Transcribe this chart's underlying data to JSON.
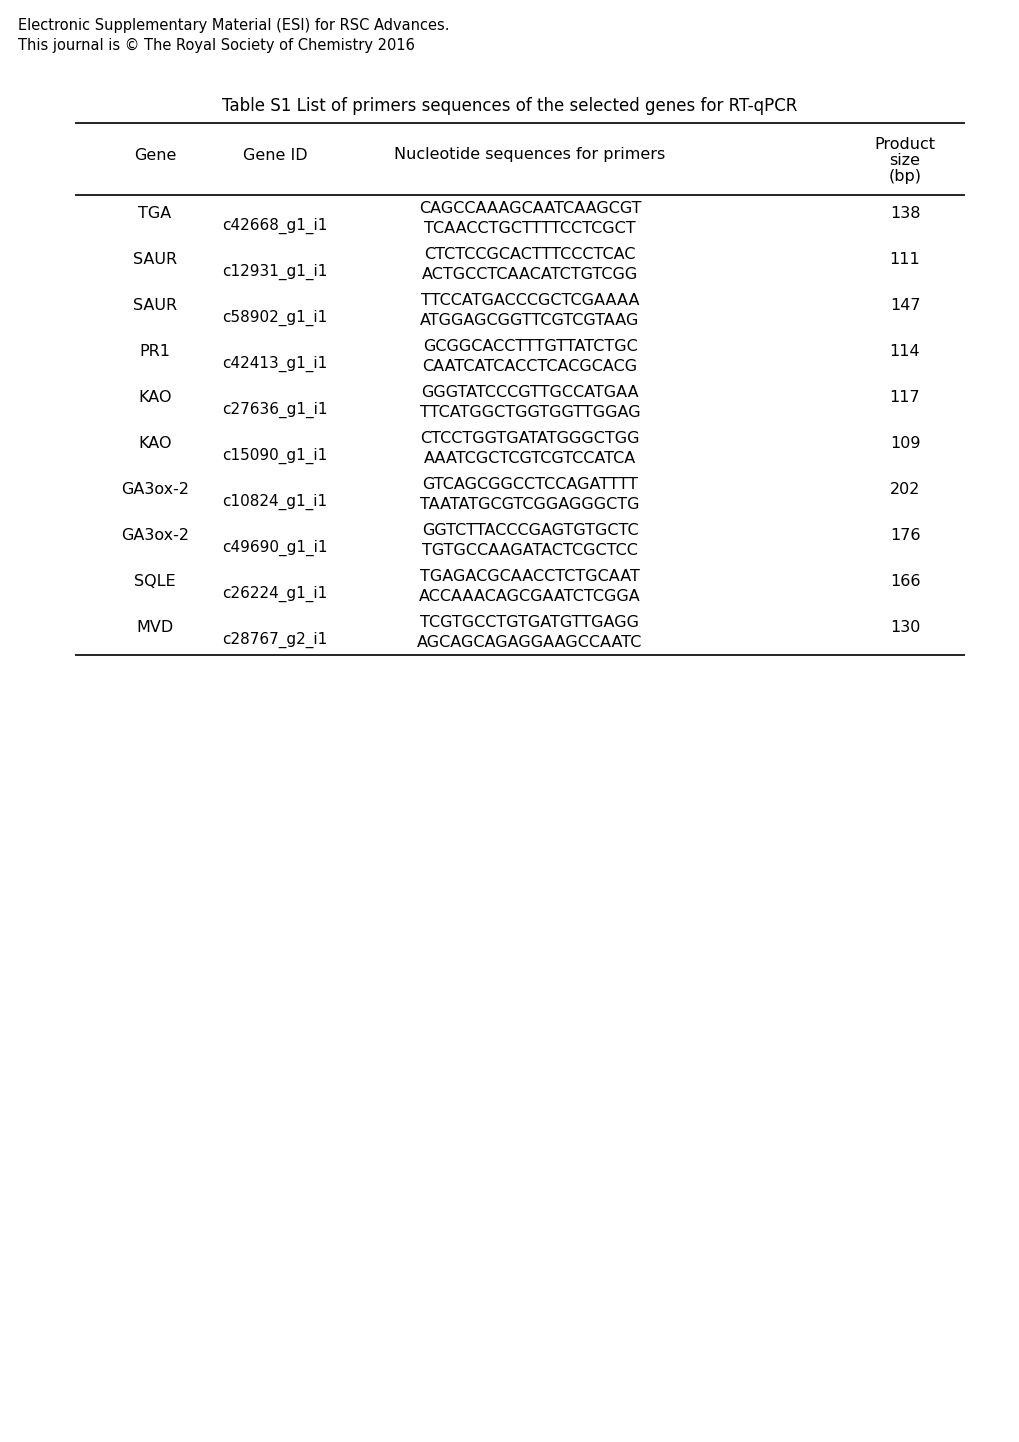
{
  "header_line1": "Electronic Supplementary Material (ESI) for RSC Advances.",
  "header_line2": "This journal is © The Royal Society of Chemistry 2016",
  "title": "Table S1 List of primers sequences of the selected genes for RT-qPCR",
  "rows": [
    {
      "gene": "TGA",
      "gene_id": "c42668_g1_i1",
      "seq1": "CAGCCAAAGCAATCAAGCGT",
      "seq2": "TCAACCTGCTTTTCCTCGCT",
      "size": "138"
    },
    {
      "gene": "SAUR",
      "gene_id": "c12931_g1_i1",
      "seq1": "CTCTCCGCACTTTCCCTCAC",
      "seq2": "ACTGCCTCAACATCTGTCGG",
      "size": "111"
    },
    {
      "gene": "SAUR",
      "gene_id": "c58902_g1_i1",
      "seq1": "TTCCATGACCCGCTCGAAAA",
      "seq2": "ATGGAGCGGTTCGTCGTAAG",
      "size": "147"
    },
    {
      "gene": "PR1",
      "gene_id": "c42413_g1_i1",
      "seq1": "GCGGCACCTTTGTTATCTGC",
      "seq2": "CAATCATCACCTCACGCACG",
      "size": "114"
    },
    {
      "gene": "KAO",
      "gene_id": "c27636_g1_i1",
      "seq1": "GGGTATCCCGTTGCCATGAA",
      "seq2": "TTCATGGCTGGTGGTTGGAG",
      "size": "117"
    },
    {
      "gene": "KAO",
      "gene_id": "c15090_g1_i1",
      "seq1": "CTCCTGGTGATATGGGCTGG",
      "seq2": "AAATCGCTCGTCGTCCATCA",
      "size": "109"
    },
    {
      "gene": "GA3ox-2",
      "gene_id": "c10824_g1_i1",
      "seq1": "GTCAGCGGCCTCCAGATTTT",
      "seq2": "TAATATGCGTCGGAGGGCTG",
      "size": "202"
    },
    {
      "gene": "GA3ox-2",
      "gene_id": "c49690_g1_i1",
      "seq1": "GGTCTTACCCGAGTGTGCTC",
      "seq2": "TGTGCCAAGATACTCGCTCC",
      "size": "176"
    },
    {
      "gene": "SQLE",
      "gene_id": "c26224_g1_i1",
      "seq1": "TGAGACGCAACCTCTGCAAT",
      "seq2": "ACCAAACAGCGAATCTCGGA",
      "size": "166"
    },
    {
      "gene": "MVD",
      "gene_id": "c28767_g2_i1",
      "seq1": "TCGTGCCTGTGATGTTGAGG",
      "seq2": "AGCAGCAGAGGAAGCCAATC",
      "size": "130"
    }
  ],
  "background_color": "#ffffff",
  "text_color": "#000000",
  "fig_width": 10.2,
  "fig_height": 14.42,
  "dpi": 100
}
